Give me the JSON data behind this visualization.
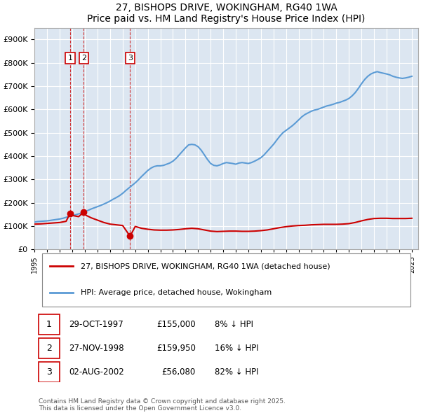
{
  "title": "27, BISHOPS DRIVE, WOKINGHAM, RG40 1WA",
  "subtitle": "Price paid vs. HM Land Registry's House Price Index (HPI)",
  "legend_line1": "27, BISHOPS DRIVE, WOKINGHAM, RG40 1WA (detached house)",
  "legend_line2": "HPI: Average price, detached house, Wokingham",
  "footer": "Contains HM Land Registry data © Crown copyright and database right 2025.\nThis data is licensed under the Open Government Licence v3.0.",
  "transactions": [
    {
      "label": "1",
      "date": "29-OCT-1997",
      "price": 155000,
      "pct": "8%",
      "x_year": 1997.83
    },
    {
      "label": "2",
      "date": "27-NOV-1998",
      "price": 159950,
      "pct": "16%",
      "x_year": 1998.91
    },
    {
      "label": "3",
      "date": "02-AUG-2002",
      "price": 56080,
      "pct": "82%",
      "x_year": 2002.59
    }
  ],
  "red_line_color": "#cc0000",
  "blue_line_color": "#5b9bd5",
  "background_color": "#dce6f1",
  "plot_bg_color": "#dce6f1",
  "ylim": [
    0,
    950000
  ],
  "xlim_start": 1995.0,
  "xlim_end": 2025.5,
  "yticks": [
    0,
    100000,
    200000,
    300000,
    400000,
    500000,
    600000,
    700000,
    800000,
    900000
  ],
  "xticks": [
    1995,
    1996,
    1997,
    1998,
    1999,
    2000,
    2001,
    2002,
    2003,
    2004,
    2005,
    2006,
    2007,
    2008,
    2009,
    2010,
    2011,
    2012,
    2013,
    2014,
    2015,
    2016,
    2017,
    2018,
    2019,
    2020,
    2021,
    2022,
    2023,
    2024,
    2025
  ],
  "hpi_x": [
    1995.0,
    1995.25,
    1995.5,
    1995.75,
    1996.0,
    1996.25,
    1996.5,
    1996.75,
    1997.0,
    1997.25,
    1997.5,
    1997.75,
    1998.0,
    1998.25,
    1998.5,
    1998.75,
    1999.0,
    1999.25,
    1999.5,
    1999.75,
    2000.0,
    2000.25,
    2000.5,
    2000.75,
    2001.0,
    2001.25,
    2001.5,
    2001.75,
    2002.0,
    2002.25,
    2002.5,
    2002.75,
    2003.0,
    2003.25,
    2003.5,
    2003.75,
    2004.0,
    2004.25,
    2004.5,
    2004.75,
    2005.0,
    2005.25,
    2005.5,
    2005.75,
    2006.0,
    2006.25,
    2006.5,
    2006.75,
    2007.0,
    2007.25,
    2007.5,
    2007.75,
    2008.0,
    2008.25,
    2008.5,
    2008.75,
    2009.0,
    2009.25,
    2009.5,
    2009.75,
    2010.0,
    2010.25,
    2010.5,
    2010.75,
    2011.0,
    2011.25,
    2011.5,
    2011.75,
    2012.0,
    2012.25,
    2012.5,
    2012.75,
    2013.0,
    2013.25,
    2013.5,
    2013.75,
    2014.0,
    2014.25,
    2014.5,
    2014.75,
    2015.0,
    2015.25,
    2015.5,
    2015.75,
    2016.0,
    2016.25,
    2016.5,
    2016.75,
    2017.0,
    2017.25,
    2017.5,
    2017.75,
    2018.0,
    2018.25,
    2018.5,
    2018.75,
    2019.0,
    2019.25,
    2019.5,
    2019.75,
    2020.0,
    2020.25,
    2020.5,
    2020.75,
    2021.0,
    2021.25,
    2021.5,
    2021.75,
    2022.0,
    2022.25,
    2022.5,
    2022.75,
    2023.0,
    2023.25,
    2023.5,
    2023.75,
    2024.0,
    2024.25,
    2024.5,
    2024.75,
    2025.0
  ],
  "hpi_y": [
    117000,
    119000,
    120000,
    121000,
    122000,
    124000,
    126000,
    128000,
    130000,
    133000,
    137000,
    141000,
    144000,
    148000,
    152000,
    156000,
    161000,
    167000,
    173000,
    178000,
    183000,
    188000,
    194000,
    200000,
    207000,
    215000,
    222000,
    230000,
    240000,
    252000,
    263000,
    274000,
    285000,
    298000,
    312000,
    325000,
    338000,
    348000,
    355000,
    358000,
    358000,
    360000,
    365000,
    370000,
    378000,
    390000,
    405000,
    420000,
    435000,
    448000,
    450000,
    448000,
    440000,
    425000,
    405000,
    385000,
    368000,
    360000,
    358000,
    362000,
    368000,
    372000,
    370000,
    368000,
    365000,
    370000,
    372000,
    370000,
    368000,
    372000,
    378000,
    385000,
    393000,
    405000,
    420000,
    435000,
    450000,
    468000,
    485000,
    500000,
    510000,
    520000,
    530000,
    542000,
    555000,
    568000,
    578000,
    585000,
    592000,
    597000,
    600000,
    605000,
    610000,
    615000,
    618000,
    622000,
    627000,
    630000,
    635000,
    640000,
    647000,
    658000,
    672000,
    690000,
    710000,
    728000,
    742000,
    752000,
    758000,
    762000,
    758000,
    755000,
    752000,
    748000,
    742000,
    738000,
    735000,
    733000,
    735000,
    738000,
    742000
  ],
  "red_x": [
    1995.0,
    1995.5,
    1996.0,
    1996.5,
    1997.0,
    1997.5,
    1997.83,
    1997.92,
    1998.0,
    1998.5,
    1998.91,
    1999.0,
    1999.5,
    2000.0,
    2000.5,
    2001.0,
    2001.5,
    2002.0,
    2002.59,
    2003.0,
    2003.5,
    2004.0,
    2004.5,
    2005.0,
    2005.5,
    2006.0,
    2006.5,
    2007.0,
    2007.5,
    2008.0,
    2008.5,
    2009.0,
    2009.5,
    2010.0,
    2010.5,
    2011.0,
    2011.5,
    2012.0,
    2012.5,
    2013.0,
    2013.5,
    2014.0,
    2014.5,
    2015.0,
    2015.5,
    2016.0,
    2016.5,
    2017.0,
    2017.5,
    2018.0,
    2018.5,
    2019.0,
    2019.5,
    2020.0,
    2020.5,
    2021.0,
    2021.5,
    2022.0,
    2022.5,
    2023.0,
    2023.5,
    2024.0,
    2024.5,
    2025.0
  ],
  "red_y": [
    108000,
    109000,
    111000,
    113000,
    115000,
    120000,
    155000,
    150000,
    145000,
    140000,
    159950,
    148000,
    135000,
    125000,
    115000,
    108000,
    105000,
    102000,
    56080,
    98000,
    90000,
    86000,
    83000,
    82000,
    82000,
    83000,
    85000,
    88000,
    90000,
    88000,
    83000,
    78000,
    76000,
    77000,
    78000,
    78000,
    77000,
    77000,
    78000,
    80000,
    83000,
    88000,
    93000,
    97000,
    100000,
    102000,
    103000,
    105000,
    106000,
    107000,
    107000,
    107000,
    108000,
    110000,
    115000,
    122000,
    128000,
    132000,
    133000,
    133000,
    132000,
    132000,
    132000,
    133000
  ]
}
